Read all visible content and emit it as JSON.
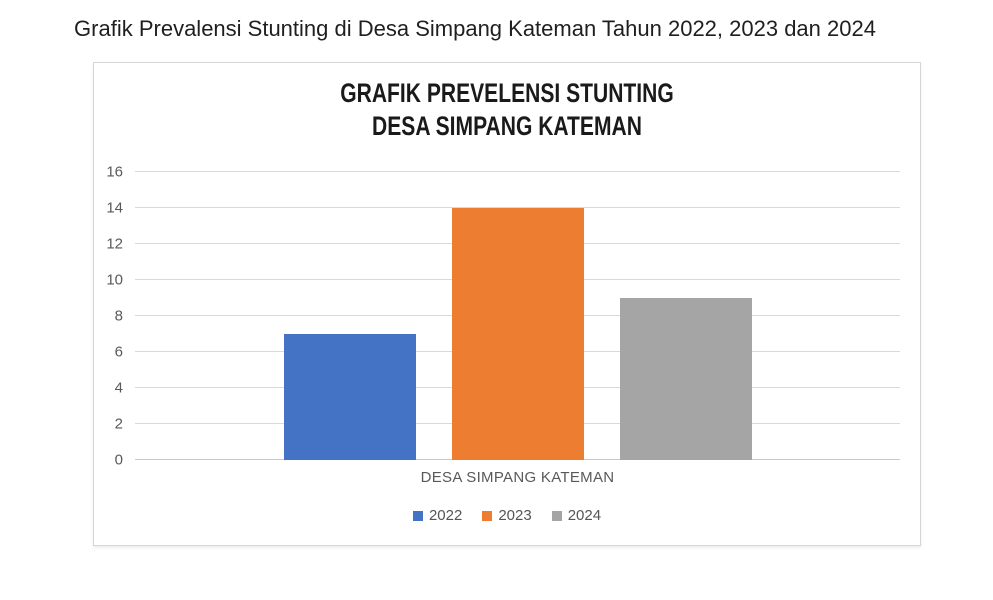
{
  "caption": "Grafik Prevalensi Stunting di Desa Simpang Kateman Tahun 2022, 2023 dan 2024",
  "chart_data": {
    "type": "bar",
    "title": "GRAFIK PREVELENSI STUNTING DESA SIMPANG KATEMAN",
    "title_line1": "GRAFIK PREVELENSI STUNTING",
    "title_line2": "DESA SIMPANG KATEMAN",
    "categories": [
      "DESA SIMPANG KATEMAN"
    ],
    "series": [
      {
        "name": "2022",
        "values": [
          7
        ],
        "color": "#4472C4"
      },
      {
        "name": "2023",
        "values": [
          14
        ],
        "color": "#ED7D31"
      },
      {
        "name": "2024",
        "values": [
          9
        ],
        "color": "#A5A5A5"
      }
    ],
    "xlabel": "",
    "ylabel": "",
    "ylim": [
      0,
      16
    ],
    "yticks": [
      0,
      2,
      4,
      6,
      8,
      10,
      12,
      14,
      16
    ],
    "grid": true,
    "legend_position": "bottom"
  },
  "colors": {
    "bar_2022": "#4472C4",
    "bar_2023": "#ED7D31",
    "bar_2024": "#A5A5A5",
    "gridline": "#D9D9D9",
    "axis_text": "#595959",
    "chart_border": "#D6D6D6",
    "background": "#FFFFFF"
  }
}
